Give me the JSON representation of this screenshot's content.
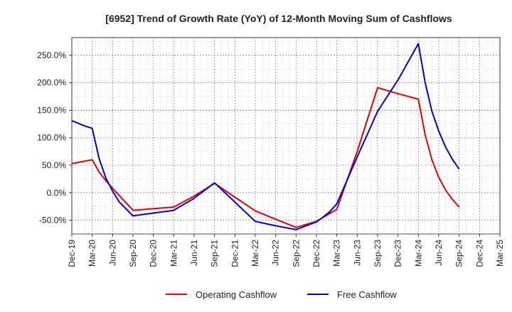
{
  "chart_data": {
    "type": "line",
    "title": "[6952]  Trend of Growth Rate (YoY) of 12-Month Moving Sum of Cashflows",
    "xlabel": "",
    "ylabel": "",
    "categories": [
      "Dec-19",
      "Mar-20",
      "Jun-20",
      "Sep-20",
      "Dec-20",
      "Mar-21",
      "Jun-21",
      "Sep-21",
      "Dec-21",
      "Mar-22",
      "Jun-22",
      "Sep-22",
      "Dec-22",
      "Mar-23",
      "Jun-23",
      "Sep-23",
      "Dec-23",
      "Mar-24",
      "Jun-24",
      "Sep-24",
      "Dec-24",
      "Mar-25"
    ],
    "x_tick_labels": [
      "Dec-19",
      "Mar-20",
      "Jun-20",
      "Sep-20",
      "Dec-20",
      "Mar-21",
      "Jun-21",
      "Sep-21",
      "Dec-21",
      "Mar-22",
      "Jun-22",
      "Sep-22",
      "Dec-22",
      "Mar-23",
      "Jun-23",
      "Sep-23",
      "Dec-23",
      "Mar-24",
      "Jun-24",
      "Sep-24",
      "Dec-24",
      "Mar-25"
    ],
    "y_tick_labels": [
      "-50.0%",
      "0.0%",
      "50.0%",
      "100.0%",
      "150.0%",
      "200.0%",
      "250.0%"
    ],
    "y_ticks": [
      -50,
      0,
      50,
      100,
      150,
      200,
      250
    ],
    "ylim": [
      -75,
      282
    ],
    "y_unit": "%",
    "grid": true,
    "legend_position": "bottom",
    "series": [
      {
        "name": "Operating Cashflow",
        "color": "#e00000",
        "x": [
          "Dec-19",
          "Mar-20",
          "Apr-20",
          "May-20",
          "Jun-20",
          "Sep-20",
          "Dec-20",
          "Mar-21",
          "Jun-21",
          "Sep-21",
          "Dec-21",
          "Mar-22",
          "Jun-22",
          "Sep-22",
          "Dec-22",
          "Mar-23",
          "Jun-23",
          "Sep-23",
          "Dec-23",
          "Mar-24",
          "Apr-24",
          "May-24",
          "Jun-24",
          "Jul-24",
          "Aug-24",
          "Sep-24"
        ],
        "values": [
          53,
          60,
          38,
          22,
          8,
          -32,
          -29,
          -26,
          -6,
          17,
          -8,
          -33,
          -48,
          -63,
          -52,
          -30,
          75,
          191,
          180,
          170,
          105,
          60,
          28,
          5,
          -12,
          -26
        ]
      },
      {
        "name": "Free Cashflow",
        "color": "#0000cc",
        "x": [
          "Dec-19",
          "Feb-20",
          "Mar-20",
          "Apr-20",
          "May-20",
          "Jun-20",
          "Jul-20",
          "Sep-20",
          "Dec-20",
          "Mar-21",
          "Jun-21",
          "Sep-21",
          "Dec-21",
          "Mar-22",
          "Jun-22",
          "Sep-22",
          "Dec-22",
          "Jan-23",
          "Feb-23",
          "Mar-23",
          "Jun-23",
          "Sep-23",
          "Dec-23",
          "Mar-24",
          "Apr-24",
          "May-24",
          "Jun-24",
          "Jul-24",
          "Aug-24",
          "Sep-24"
        ],
        "values": [
          131,
          121,
          117,
          63,
          27,
          3,
          -17,
          -42,
          -37,
          -32,
          -10,
          18,
          -17,
          -52,
          -60,
          -67,
          -53,
          -44,
          -34,
          -20,
          65,
          148,
          205,
          271,
          200,
          148,
          112,
          83,
          61,
          43
        ]
      }
    ]
  }
}
